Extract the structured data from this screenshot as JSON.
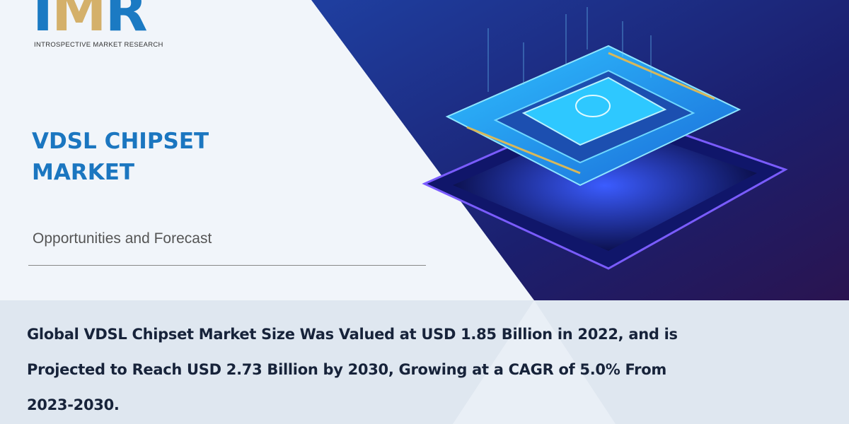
{
  "logo": {
    "letters": [
      "I",
      "M",
      "R"
    ],
    "tagline": "INTROSPECTIVE MARKET RESEARCH"
  },
  "title_lines": [
    "VDSL CHIPSET",
    "MARKET"
  ],
  "subtitle": "Opportunities and Forecast",
  "summary": "Global VDSL Chipset Market Size Was Valued at USD 1.85 Billion in 2022, and is Projected to Reach USD 2.73 Billion by 2030, Growing at a CAGR of 5.0% From 2023-2030.",
  "colors": {
    "brand_blue": "#1b7ac3",
    "brand_gold": "#d4b06a",
    "panel_dark": "#1a2370",
    "text_dark": "#17233a"
  }
}
